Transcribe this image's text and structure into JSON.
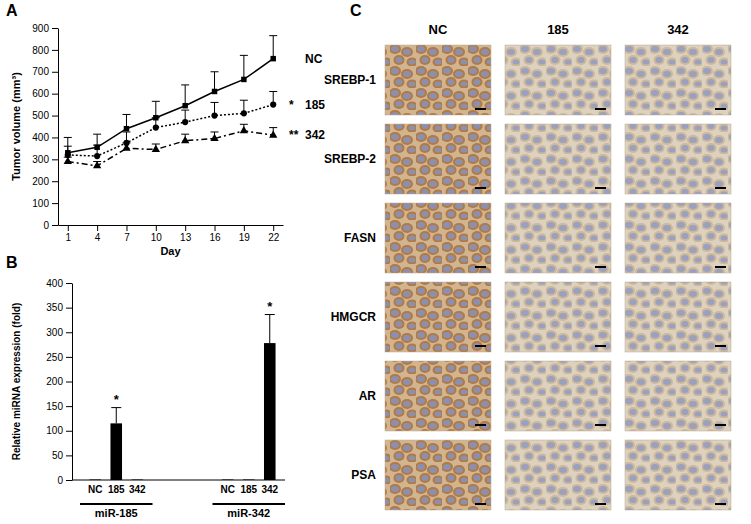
{
  "chart_data": [
    {
      "type": "line",
      "title": "A",
      "x_label": "Day",
      "y_label": "Tumor volume (mm³)",
      "x": [
        1,
        4,
        7,
        10,
        13,
        16,
        19,
        22
      ],
      "xlim": [
        0,
        23
      ],
      "xticks": [
        1,
        4,
        7,
        10,
        13,
        16,
        19,
        22
      ],
      "ylim": [
        0,
        900
      ],
      "yticks": [
        0,
        100,
        200,
        300,
        400,
        500,
        600,
        700,
        800,
        900
      ],
      "series": [
        {
          "name": "NC",
          "color": "#000000",
          "marker": "square",
          "line_style": "solid",
          "values": [
            330,
            355,
            440,
            490,
            545,
            610,
            665,
            760
          ],
          "errors": [
            70,
            60,
            65,
            75,
            95,
            90,
            110,
            105
          ]
        },
        {
          "name": "185",
          "color": "#000000",
          "marker": "circle",
          "line_style": "dotted",
          "annotation": "*",
          "values": [
            320,
            315,
            375,
            445,
            470,
            500,
            510,
            550
          ],
          "errors": [
            40,
            50,
            50,
            45,
            55,
            60,
            60,
            60
          ]
        },
        {
          "name": "342",
          "color": "#000000",
          "marker": "triangle",
          "line_style": "dashdot",
          "annotation": "**",
          "values": [
            290,
            270,
            350,
            345,
            385,
            395,
            430,
            410
          ],
          "errors": [
            20,
            20,
            25,
            25,
            30,
            30,
            30,
            35
          ]
        }
      ]
    },
    {
      "type": "bar",
      "title": "B",
      "y_label": "Relative miRNA expression (fold)",
      "categories": [
        "NC",
        "185",
        "342",
        "NC",
        "185",
        "342"
      ],
      "group_labels": [
        "miR-185",
        "miR-342"
      ],
      "values": [
        1,
        115,
        1,
        1,
        1,
        278
      ],
      "errors": [
        0,
        32,
        0,
        0,
        0,
        58
      ],
      "significance": [
        null,
        "*",
        null,
        null,
        null,
        "*"
      ],
      "color": "#000000",
      "ylim": [
        0,
        400
      ],
      "yticks": [
        0,
        50,
        100,
        150,
        200,
        250,
        300,
        350,
        400
      ]
    }
  ],
  "image_grid": {
    "title": "C",
    "columns": [
      "NC",
      "185",
      "342"
    ],
    "rows": [
      "SREBP-1",
      "SREBP-2",
      "FASN",
      "HMGCR",
      "AR",
      "PSA"
    ]
  }
}
